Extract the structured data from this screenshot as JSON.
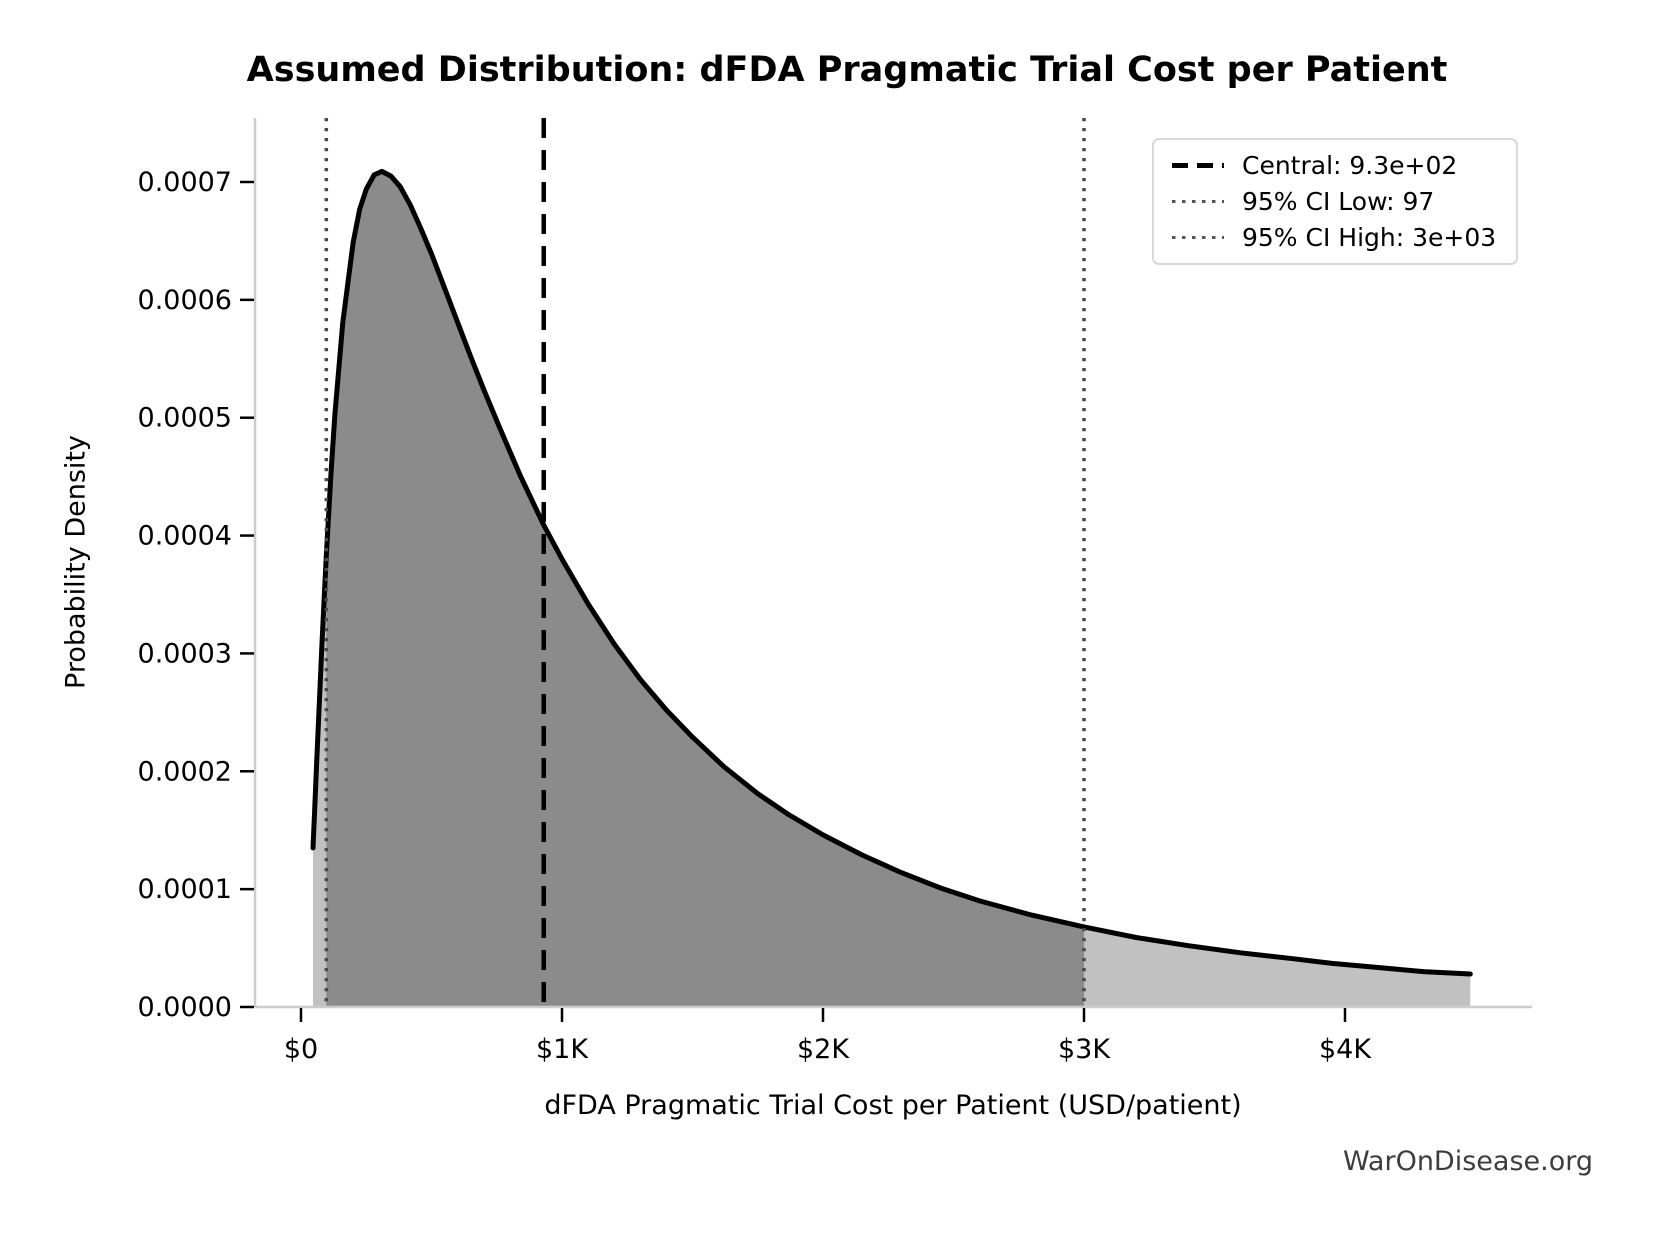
{
  "watermark": "WarOnDisease.org",
  "chart_data": {
    "type": "area",
    "title": "Assumed Distribution: dFDA Pragmatic Trial Cost per Patient",
    "xlabel": "dFDA Pragmatic Trial Cost per Patient (USD/patient)",
    "ylabel": "Probability Density",
    "xlim": [
      -176,
      4700
    ],
    "ylim": [
      0,
      0.000754
    ],
    "grid": false,
    "legend_position": "upper right",
    "x_ticks": [
      {
        "value": 0,
        "label": "$0"
      },
      {
        "value": 1000,
        "label": "$1K"
      },
      {
        "value": 2000,
        "label": "$2K"
      },
      {
        "value": 3000,
        "label": "$3K"
      },
      {
        "value": 4000,
        "label": "$4K"
      }
    ],
    "y_ticks": [
      {
        "value": 0.0,
        "label": "0.0000"
      },
      {
        "value": 0.0001,
        "label": "0.0001"
      },
      {
        "value": 0.0002,
        "label": "0.0002"
      },
      {
        "value": 0.0003,
        "label": "0.0003"
      },
      {
        "value": 0.0004,
        "label": "0.0004"
      },
      {
        "value": 0.0005,
        "label": "0.0005"
      },
      {
        "value": 0.0006,
        "label": "0.0006"
      },
      {
        "value": 0.0007,
        "label": "0.0007"
      }
    ],
    "central": {
      "value": 930,
      "label": "Central: 9.3e+02",
      "line_style": "dashed"
    },
    "ci_low": {
      "value": 97,
      "label": "95% CI Low: 97",
      "line_style": "dotted"
    },
    "ci_high": {
      "value": 3000,
      "label": "95% CI High: 3e+03",
      "line_style": "dotted"
    },
    "curve": {
      "x": [
        46,
        52,
        60,
        80,
        97,
        115,
        130,
        160,
        200,
        225,
        250,
        280,
        310,
        345,
        380,
        420,
        460,
        500,
        550,
        600,
        650,
        700,
        760,
        840,
        930,
        1000,
        1100,
        1200,
        1300,
        1400,
        1500,
        1620,
        1750,
        1870,
        2000,
        2150,
        2300,
        2450,
        2600,
        2800,
        3000,
        3200,
        3400,
        3600,
        3800,
        3950,
        4100,
        4300,
        4480
      ],
      "density": [
        0.000135,
        0.000166,
        0.000208,
        0.000307,
        0.000383,
        0.000453,
        0.000503,
        0.000581,
        0.000649,
        0.000677,
        0.000694,
        0.000706,
        0.000709,
        0.000705,
        0.000696,
        0.00068,
        0.00066,
        0.000639,
        0.00061,
        0.000581,
        0.000552,
        0.000524,
        0.000492,
        0.000451,
        0.000409,
        0.00038,
        0.000342,
        0.000308,
        0.000278,
        0.000252,
        0.000229,
        0.000204,
        0.000181,
        0.000163,
        0.000146,
        0.000129,
        0.000114,
        0.000101,
        9e-05,
        7.8e-05,
        6.8e-05,
        5.9e-05,
        5.2e-05,
        4.6e-05,
        4.1e-05,
        3.7e-05,
        3.4e-05,
        3e-05,
        2.8e-05
      ]
    },
    "colors": {
      "curve": "#000000",
      "fill_full": "#c1c1c1",
      "fill_ci": "#8b8b8b",
      "central_line": "#000000",
      "ci_line": "#4a4a4a",
      "spine": "#cccccc",
      "tick": "#000000",
      "watermark": "#3d3d3d"
    }
  }
}
